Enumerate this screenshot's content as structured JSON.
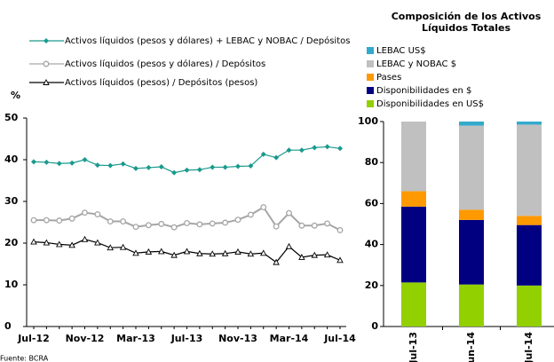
{
  "chart_data": [
    {
      "type": "line",
      "ylabel": "%",
      "source": "Fuente: BCRA",
      "categories": [
        "Jul-12",
        null,
        null,
        null,
        "Nov-12",
        null,
        null,
        null,
        "Mar-13",
        null,
        null,
        null,
        "Jul-13",
        null,
        null,
        null,
        "Nov-13",
        null,
        null,
        null,
        "Mar-14",
        null,
        null,
        null,
        "Jul-14"
      ],
      "series": [
        {
          "name": "Activos líquidos (pesos y dólares) + LEBAC y NOBAC / Depósitos",
          "color": "#1a9a8c",
          "marker": "diamond",
          "values": [
            39.5,
            39.4,
            39.1,
            39.2,
            40,
            38.7,
            38.6,
            39,
            37.9,
            38.1,
            38.3,
            36.9,
            37.5,
            37.6,
            38.2,
            38.2,
            38.4,
            38.5,
            41.3,
            40.5,
            42.3,
            42.3,
            42.9,
            43.1,
            42.7
          ]
        },
        {
          "name": "Activos líquidos (pesos y dólares) / Depósitos",
          "color": "#a6a6a6",
          "marker": "circle",
          "values": [
            25.5,
            25.5,
            25.4,
            25.9,
            27.3,
            26.9,
            25.2,
            25.2,
            23.9,
            24.3,
            24.6,
            23.8,
            24.8,
            24.5,
            24.7,
            24.9,
            25.6,
            26.8,
            28.6,
            24,
            27.2,
            24.2,
            24.2,
            24.7,
            23.1
          ]
        },
        {
          "name": "Activos líquidos (pesos) / Depósitos (pesos)",
          "color": "#000000",
          "marker": "triangle",
          "values": [
            20.3,
            20.1,
            19.7,
            19.5,
            20.9,
            20.1,
            18.9,
            19,
            17.6,
            17.9,
            18,
            17.1,
            18,
            17.5,
            17.4,
            17.5,
            17.9,
            17.4,
            17.6,
            15.4,
            19.2,
            16.6,
            17.1,
            17.2,
            15.9
          ]
        }
      ],
      "ylim": [
        0,
        50
      ],
      "yticks": [
        0,
        10,
        20,
        30,
        40,
        50
      ]
    },
    {
      "type": "bar",
      "stacked": true,
      "title": "Composición de los Activos Líquidos Totales",
      "categories": [
        "Jul-13",
        "Jun-14",
        "Jul-14"
      ],
      "series": [
        {
          "name": "Disponibilidades en US$",
          "color": "#92d000",
          "values": [
            21.5,
            20.5,
            20
          ]
        },
        {
          "name": "Disponibilidades en $",
          "color": "#000080",
          "values": [
            37,
            31.5,
            29.5
          ]
        },
        {
          "name": "Pases",
          "color": "#ff9900",
          "values": [
            7.5,
            5,
            4.5
          ]
        },
        {
          "name": "LEBAC y NOBAC $",
          "color": "#c0c0c0",
          "values": [
            34,
            41,
            44.5
          ]
        },
        {
          "name": "LEBAC US$",
          "color": "#33aacc",
          "values": [
            0,
            2,
            1.5
          ]
        }
      ],
      "ylim": [
        0,
        100
      ],
      "yticks": [
        0,
        20,
        40,
        60,
        80,
        100
      ]
    }
  ]
}
